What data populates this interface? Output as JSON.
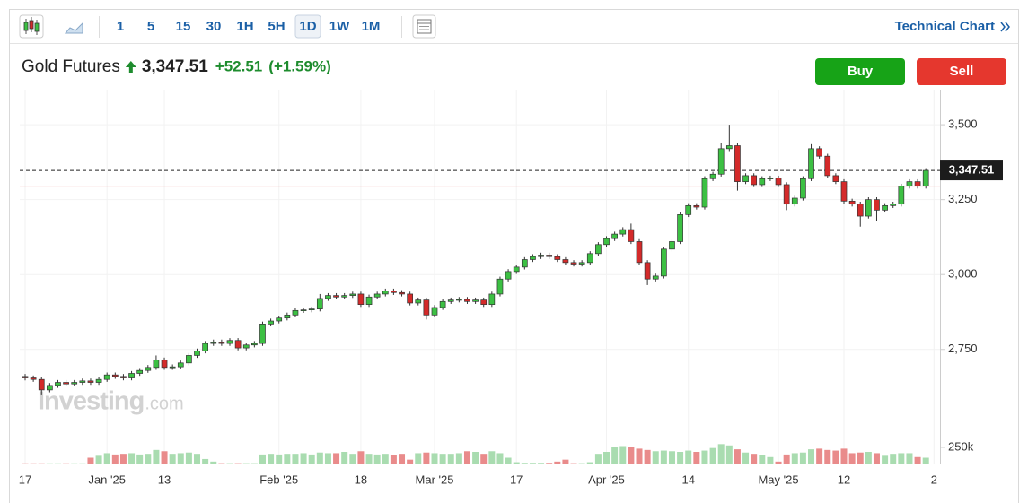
{
  "toolbar": {
    "intervals": [
      "1",
      "5",
      "15",
      "30",
      "1H",
      "5H",
      "1D",
      "1W",
      "1M"
    ],
    "active_interval": "1D",
    "link": "Technical Chart"
  },
  "buttons": {
    "buy": "Buy",
    "sell": "Sell"
  },
  "chart_data": {
    "type": "candlestick",
    "title": "Gold Futures",
    "last_price": {
      "value": 3347.51,
      "label": "3,347.51"
    },
    "change": "+52.51",
    "change_percent": "(+1.59%)",
    "prev_close": 3295,
    "watermark": [
      "Investing",
      ".com"
    ],
    "categories": [
      "17",
      null,
      null,
      null,
      null,
      null,
      null,
      null,
      null,
      null,
      "Jan '25",
      null,
      null,
      null,
      null,
      null,
      null,
      "13",
      null,
      null,
      null,
      null,
      null,
      null,
      null,
      null,
      null,
      null,
      null,
      null,
      null,
      "Feb '25",
      null,
      null,
      null,
      null,
      null,
      null,
      null,
      null,
      null,
      "18",
      null,
      null,
      null,
      null,
      null,
      null,
      null,
      null,
      "Mar '25",
      null,
      null,
      null,
      null,
      null,
      null,
      null,
      null,
      null,
      "17",
      null,
      null,
      null,
      null,
      null,
      null,
      null,
      null,
      null,
      null,
      "Apr '25",
      null,
      null,
      null,
      null,
      null,
      null,
      null,
      null,
      null,
      "14",
      null,
      null,
      null,
      null,
      null,
      null,
      null,
      null,
      null,
      null,
      "May '25",
      null,
      null,
      null,
      null,
      null,
      null,
      null,
      "12",
      null,
      null,
      null,
      null,
      null,
      null,
      null,
      null,
      null,
      null,
      "2"
    ],
    "open": [
      2660,
      2655,
      2650,
      2615,
      2630,
      2640,
      2635,
      2640,
      2645,
      2640,
      2650,
      2665,
      2660,
      2655,
      2670,
      2680,
      2690,
      2715,
      2690,
      2692,
      2705,
      2730,
      2745,
      2770,
      2775,
      2770,
      2780,
      2755,
      2765,
      2770,
      2835,
      2845,
      2855,
      2865,
      2880,
      2882,
      2885,
      2920,
      2930,
      2925,
      2930,
      2935,
      2900,
      2925,
      2935,
      2945,
      2940,
      2935,
      2905,
      2915,
      2865,
      2890,
      2910,
      2915,
      2917,
      2910,
      2915,
      2900,
      2935,
      2985,
      3010,
      3025,
      3050,
      3060,
      3065,
      3060,
      3050,
      3040,
      3035,
      3040,
      3070,
      3100,
      3120,
      3135,
      3150,
      3110,
      3040,
      2985,
      2995,
      3085,
      3110,
      3200,
      3230,
      3225,
      3320,
      3335,
      3420,
      3430,
      3310,
      3330,
      3300,
      3320,
      3322,
      3300,
      3235,
      3255,
      3320,
      3420,
      3395,
      3330,
      3310,
      3245,
      3235,
      3195,
      3250,
      3215,
      3230,
      3235,
      3295,
      3310,
      3295,
      null
    ],
    "high": [
      2668,
      2663,
      2658,
      2638,
      2648,
      2648,
      2648,
      2653,
      2653,
      2658,
      2673,
      2673,
      2668,
      2678,
      2688,
      2698,
      2730,
      2723,
      2700,
      2713,
      2738,
      2753,
      2778,
      2783,
      2783,
      2788,
      2788,
      2773,
      2778,
      2843,
      2853,
      2863,
      2873,
      2888,
      2890,
      2893,
      2935,
      2938,
      2938,
      2938,
      2943,
      2943,
      2933,
      2943,
      2953,
      2953,
      2948,
      2943,
      2923,
      2923,
      2898,
      2918,
      2923,
      2925,
      2925,
      2923,
      2923,
      2943,
      2993,
      3018,
      3033,
      3058,
      3068,
      3073,
      3073,
      3068,
      3058,
      3048,
      3048,
      3078,
      3108,
      3128,
      3143,
      3158,
      3170,
      3118,
      3048,
      3003,
      3093,
      3118,
      3208,
      3238,
      3238,
      3328,
      3343,
      3440,
      3500,
      3438,
      3338,
      3338,
      3328,
      3330,
      3330,
      3308,
      3263,
      3328,
      3435,
      3428,
      3403,
      3338,
      3318,
      3253,
      3243,
      3258,
      3258,
      3238,
      3243,
      3303,
      3318,
      3318,
      3355,
      null
    ],
    "low": [
      2647,
      2642,
      2600,
      2607,
      2622,
      2627,
      2627,
      2632,
      2632,
      2632,
      2642,
      2652,
      2647,
      2647,
      2662,
      2672,
      2682,
      2682,
      2682,
      2684,
      2697,
      2722,
      2737,
      2762,
      2762,
      2762,
      2747,
      2747,
      2757,
      2762,
      2827,
      2837,
      2847,
      2857,
      2872,
      2874,
      2877,
      2912,
      2917,
      2917,
      2922,
      2892,
      2892,
      2917,
      2927,
      2932,
      2927,
      2897,
      2897,
      2850,
      2857,
      2882,
      2902,
      2907,
      2902,
      2902,
      2892,
      2892,
      2927,
      2977,
      3002,
      3017,
      3042,
      3052,
      3052,
      3042,
      3032,
      3027,
      3027,
      3032,
      3062,
      3092,
      3112,
      3127,
      3102,
      3032,
      2965,
      2977,
      2987,
      3077,
      3102,
      3192,
      3217,
      3217,
      3312,
      3327,
      3412,
      3280,
      3302,
      3292,
      3292,
      3312,
      3292,
      3215,
      3227,
      3247,
      3312,
      3387,
      3322,
      3302,
      3237,
      3227,
      3160,
      3187,
      3180,
      3207,
      3222,
      3227,
      3287,
      3287,
      3287,
      null
    ],
    "close": [
      2655,
      2650,
      2615,
      2630,
      2640,
      2635,
      2640,
      2645,
      2640,
      2650,
      2665,
      2660,
      2655,
      2670,
      2680,
      2690,
      2715,
      2690,
      2692,
      2705,
      2730,
      2745,
      2770,
      2775,
      2770,
      2780,
      2755,
      2765,
      2770,
      2835,
      2845,
      2855,
      2865,
      2880,
      2882,
      2885,
      2920,
      2930,
      2925,
      2930,
      2935,
      2900,
      2925,
      2935,
      2945,
      2940,
      2935,
      2905,
      2915,
      2865,
      2890,
      2910,
      2915,
      2917,
      2910,
      2915,
      2900,
      2935,
      2985,
      3010,
      3025,
      3050,
      3060,
      3065,
      3060,
      3050,
      3040,
      3035,
      3040,
      3070,
      3100,
      3120,
      3135,
      3150,
      3110,
      3040,
      2985,
      2995,
      3085,
      3110,
      3200,
      3230,
      3225,
      3320,
      3335,
      3420,
      3430,
      3310,
      3330,
      3300,
      3320,
      3322,
      3300,
      3235,
      3255,
      3320,
      3420,
      3395,
      3330,
      3310,
      3245,
      3235,
      3195,
      3250,
      3215,
      3230,
      3235,
      3295,
      3310,
      3295,
      3347.51,
      null
    ],
    "volume": [
      3000,
      3000,
      3000,
      3000,
      3000,
      3000,
      3000,
      3000,
      90000,
      120000,
      160000,
      140000,
      150000,
      160000,
      140000,
      150000,
      210000,
      190000,
      150000,
      160000,
      170000,
      150000,
      70000,
      30000,
      5000,
      5000,
      5000,
      5000,
      5000,
      140000,
      150000,
      140000,
      150000,
      150000,
      160000,
      140000,
      170000,
      160000,
      160000,
      180000,
      150000,
      190000,
      150000,
      140000,
      150000,
      130000,
      150000,
      60000,
      160000,
      170000,
      160000,
      150000,
      150000,
      160000,
      190000,
      180000,
      150000,
      190000,
      160000,
      90000,
      20000,
      10000,
      10000,
      10000,
      10000,
      30000,
      60000,
      5000,
      5000,
      20000,
      150000,
      180000,
      250000,
      270000,
      260000,
      230000,
      210000,
      190000,
      200000,
      190000,
      180000,
      200000,
      180000,
      200000,
      240000,
      300000,
      280000,
      220000,
      170000,
      150000,
      130000,
      100000,
      30000,
      140000,
      160000,
      170000,
      220000,
      230000,
      210000,
      200000,
      230000,
      160000,
      170000,
      180000,
      160000,
      120000,
      150000,
      160000,
      160000,
      100000,
      90000,
      null
    ],
    "up_color": "#3cc043",
    "down_color": "#d42a2a",
    "up_volume_color": "#a9dcb0",
    "down_volume_color": "#e98b8b",
    "ylim": [
      2486,
      3617
    ],
    "yticks": [
      {
        "value": 2750,
        "label": "2,750"
      },
      {
        "value": 3000,
        "label": "3,000"
      },
      {
        "value": 3250,
        "label": "3,250"
      },
      {
        "value": 3500,
        "label": "3,500"
      }
    ],
    "vlim": [
      0,
      540000
    ],
    "vticks": [
      {
        "value": 250000,
        "label": "250k"
      }
    ],
    "grid": true
  }
}
